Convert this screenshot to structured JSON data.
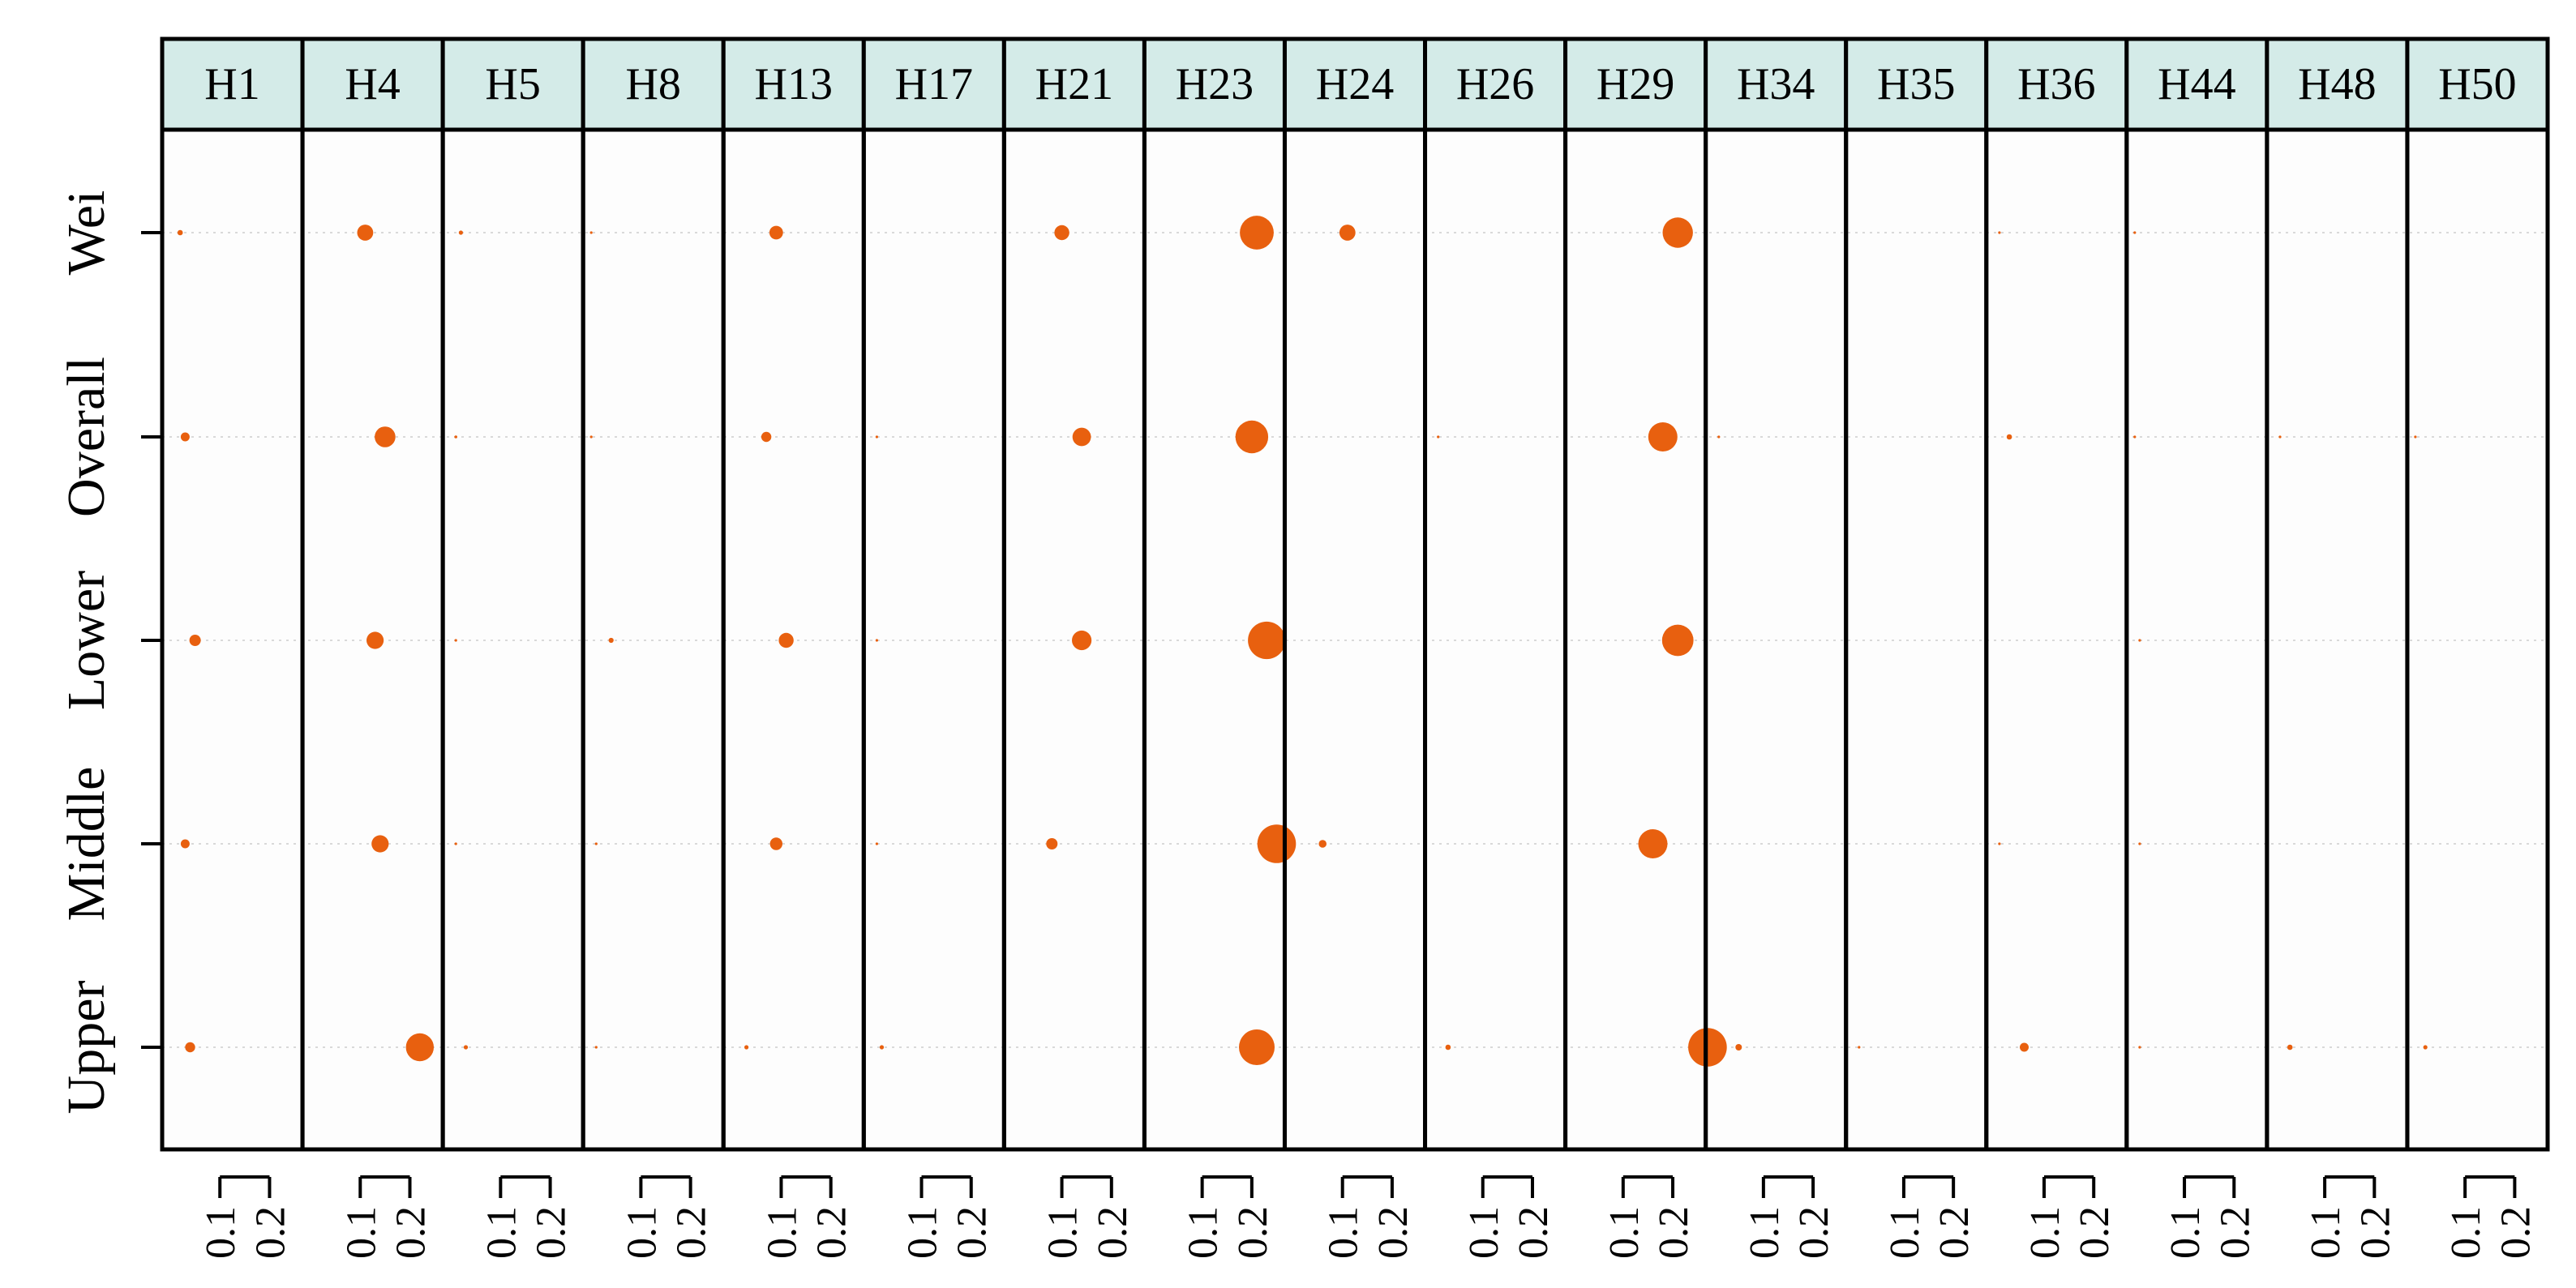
{
  "chart_data": {
    "type": "scatter",
    "title": "",
    "xlabel": "",
    "ylabel": "",
    "panels": [
      "H1",
      "H4",
      "H5",
      "H8",
      "H13",
      "H17",
      "H21",
      "H23",
      "H24",
      "H26",
      "H29",
      "H34",
      "H35",
      "H36",
      "H44",
      "H48",
      "H50"
    ],
    "rows": [
      "Wei",
      "Overall",
      "Lower",
      "Middle",
      "Upper"
    ],
    "x_ticks": [
      "0.1",
      "0.2"
    ],
    "xlim": [
      0,
      0.25
    ],
    "grid": "dotted horizontal row guides",
    "colors": {
      "point": "#e8600f",
      "strip_background": "#d4ebe8",
      "panel_background": "#fdfdfd",
      "guide": "#d9d9d9"
    },
    "values": {
      "Wei": [
        0.02,
        0.11,
        0.02,
        0.0,
        0.09,
        0.0,
        0.1,
        0.21,
        0.11,
        0.0,
        0.21,
        0.0,
        0.0,
        0.01,
        0.0,
        0.0,
        0.0
      ],
      "Overall": [
        0.03,
        0.15,
        0.01,
        0.0,
        0.07,
        0.01,
        0.14,
        0.2,
        0.0,
        0.01,
        0.18,
        0.01,
        0.0,
        0.03,
        0.0,
        0.01,
        0.0
      ],
      "Lower": [
        0.05,
        0.13,
        0.01,
        0.04,
        0.11,
        0.01,
        0.14,
        0.23,
        0.0,
        0.0,
        0.21,
        0.0,
        0.0,
        0.0,
        0.01,
        0.0,
        0.0
      ],
      "Middle": [
        0.03,
        0.14,
        0.01,
        0.01,
        0.09,
        0.01,
        0.08,
        0.25,
        0.06,
        0.0,
        0.16,
        0.0,
        0.0,
        0.01,
        0.01,
        0.0,
        0.0
      ],
      "Upper": [
        0.04,
        0.22,
        0.03,
        0.01,
        0.03,
        0.02,
        0.0,
        0.21,
        0.0,
        0.03,
        0.27,
        0.05,
        0.01,
        0.06,
        0.01,
        0.03,
        0.02
      ]
    },
    "sizes": {
      "Wei": [
        0.15,
        0.45,
        0.12,
        0.03,
        0.38,
        0.0,
        0.42,
        0.95,
        0.45,
        0.0,
        0.85,
        0.0,
        0.0,
        0.05,
        0.05,
        0.0,
        0.0
      ],
      "Overall": [
        0.25,
        0.58,
        0.08,
        0.04,
        0.28,
        0.06,
        0.52,
        0.92,
        0.0,
        0.05,
        0.82,
        0.07,
        0.0,
        0.15,
        0.05,
        0.07,
        0.03
      ],
      "Lower": [
        0.32,
        0.48,
        0.06,
        0.14,
        0.42,
        0.05,
        0.55,
        1.05,
        0.0,
        0.0,
        0.88,
        0.0,
        0.0,
        0.0,
        0.07,
        0.0,
        0.0
      ],
      "Middle": [
        0.25,
        0.48,
        0.06,
        0.06,
        0.35,
        0.06,
        0.32,
        1.08,
        0.22,
        0.0,
        0.82,
        0.0,
        0.0,
        0.05,
        0.05,
        0.0,
        0.0
      ],
      "Upper": [
        0.28,
        0.78,
        0.12,
        0.06,
        0.12,
        0.12,
        0.0,
        1.0,
        0.0,
        0.15,
        1.08,
        0.18,
        0.06,
        0.25,
        0.07,
        0.15,
        0.12
      ]
    }
  }
}
